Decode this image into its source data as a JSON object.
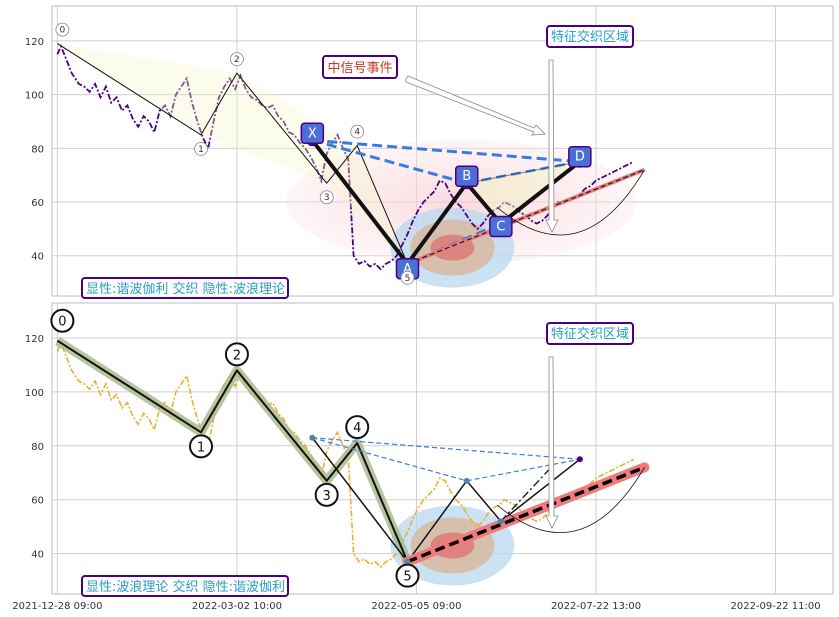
{
  "colors": {
    "grid": "#cfcfcf",
    "frame": "#bdbdbd",
    "purple_price": "#4b0082",
    "gold_price": "#e8b030",
    "pattern_blue": "#3a7be0",
    "node_blue": "#4a6fd6",
    "node_border": "#4b0082",
    "wave_line": "#111111",
    "wave_fill": "#f5f5c8",
    "wave_band": "#a7b786",
    "target_red": "#ee7c7c",
    "pink_zone": "#fbe3e6",
    "zone_blue": "#b8d8ef",
    "zone_tan": "#d8b79a",
    "zone_red": "#e07070",
    "box_border": "#4b0082",
    "box_text_blue": "#2a9cc6",
    "box_text_red": "#c0392b"
  },
  "annotations": {
    "top_feature_box": "特征交织区域",
    "top_signal_box": "中信号事件",
    "top_legend": "显性:谐波伽利 交织 隐性:波浪理论",
    "bottom_feature_box": "特征交织区域",
    "bottom_legend": "显性:波浪理论 交织 隐性:谐波伽利"
  },
  "chart_data": [
    {
      "type": "line",
      "panel": "top",
      "yticks": [
        40,
        60,
        80,
        100,
        120
      ],
      "ylim": [
        25,
        133
      ],
      "xlim": [
        -3,
        432
      ],
      "xtick_labels": [],
      "series": [
        {
          "role": "price",
          "x": [
            0,
            2,
            5,
            8,
            12,
            15,
            18,
            21,
            24,
            27,
            30,
            33,
            36,
            39,
            42,
            45,
            48,
            51,
            54,
            57,
            60,
            63,
            66,
            69,
            72,
            75,
            78,
            81,
            84,
            87,
            90,
            93,
            96,
            99,
            102,
            105,
            108,
            111,
            114,
            117,
            120,
            123,
            126,
            129,
            132,
            135,
            138,
            141,
            144,
            147,
            150,
            153,
            156,
            159,
            162,
            165,
            168,
            171,
            174,
            177,
            180,
            183,
            186,
            189,
            192,
            195,
            198,
            201,
            204,
            207,
            210,
            213,
            216,
            219,
            222,
            225,
            228,
            231,
            234,
            237,
            240,
            243,
            246,
            249,
            252,
            255,
            258,
            261,
            264,
            267,
            270,
            273,
            276,
            279,
            282,
            285,
            288,
            291,
            294,
            297,
            300,
            303,
            306,
            309,
            312,
            315,
            318,
            321
          ],
          "y": [
            115,
            118,
            113,
            108,
            104,
            103,
            101,
            104,
            99,
            103,
            97,
            99,
            94,
            96,
            91,
            88,
            92,
            90,
            86,
            94,
            96,
            92,
            100,
            103,
            106,
            97,
            90,
            84,
            80,
            90,
            99,
            103,
            106,
            102,
            107,
            102,
            99,
            98,
            96,
            95,
            96,
            92,
            90,
            86,
            85,
            82,
            80,
            77,
            73,
            68,
            78,
            82,
            85,
            80,
            76,
            40,
            37,
            38,
            36,
            37,
            35,
            37,
            38,
            40,
            44,
            48,
            53,
            57,
            60,
            62,
            64,
            68,
            67,
            63,
            60,
            58,
            55,
            52,
            50,
            52,
            55,
            57,
            58,
            60,
            59,
            58,
            56,
            55,
            53,
            52,
            53,
            55,
            58,
            60,
            60,
            61,
            62,
            63,
            65,
            66,
            68,
            69,
            70,
            71,
            72,
            73,
            74,
            75
          ]
        }
      ],
      "waves": [
        {
          "label": "0",
          "x": 0,
          "y": 119
        },
        {
          "label": "1",
          "x": 80,
          "y": 85
        },
        {
          "label": "2",
          "x": 100,
          "y": 108
        },
        {
          "label": "3",
          "x": 150,
          "y": 67
        },
        {
          "label": "4",
          "x": 167,
          "y": 81
        },
        {
          "label": "5",
          "x": 195,
          "y": 37
        }
      ],
      "harmonic": [
        {
          "label": "X",
          "x": 142,
          "y": 83
        },
        {
          "label": "A",
          "x": 195,
          "y": 37
        },
        {
          "label": "B",
          "x": 228,
          "y": 67
        },
        {
          "label": "C",
          "x": 247,
          "y": 52
        },
        {
          "label": "D",
          "x": 291,
          "y": 75
        }
      ],
      "target_line": {
        "x": [
          195,
          327
        ],
        "y": [
          37,
          72
        ]
      }
    },
    {
      "type": "line",
      "panel": "bottom",
      "yticks": [
        40,
        60,
        80,
        100,
        120
      ],
      "ylim": [
        25,
        133
      ],
      "xlim": [
        -3,
        432
      ],
      "xtick_labels": [
        "2021-12-28 09:00",
        "2022-03-02 10:00",
        "2022-05-05 09:00",
        "2022-07-22 13:00",
        "2022-09-22 11:00"
      ],
      "series": [
        {
          "role": "price",
          "x": [
            0,
            2,
            5,
            8,
            12,
            15,
            18,
            21,
            24,
            27,
            30,
            33,
            36,
            39,
            42,
            45,
            48,
            51,
            54,
            57,
            60,
            63,
            66,
            69,
            72,
            75,
            78,
            81,
            84,
            87,
            90,
            93,
            96,
            99,
            102,
            105,
            108,
            111,
            114,
            117,
            120,
            123,
            126,
            129,
            132,
            135,
            138,
            141,
            144,
            147,
            150,
            153,
            156,
            159,
            162,
            165,
            168,
            171,
            174,
            177,
            180,
            183,
            186,
            189,
            192,
            195,
            198,
            201,
            204,
            207,
            210,
            213,
            216,
            219,
            222,
            225,
            228,
            231,
            234,
            237,
            240,
            243,
            246,
            249,
            252,
            255,
            258,
            261,
            264,
            267,
            270,
            273,
            276,
            279,
            282,
            285,
            288,
            291,
            294,
            297,
            300,
            303,
            306,
            309,
            312,
            315,
            318,
            321
          ],
          "y": [
            115,
            118,
            113,
            108,
            104,
            103,
            101,
            104,
            99,
            103,
            97,
            99,
            94,
            96,
            91,
            88,
            92,
            90,
            86,
            94,
            96,
            92,
            100,
            103,
            106,
            97,
            90,
            84,
            80,
            90,
            99,
            103,
            106,
            102,
            107,
            102,
            99,
            98,
            96,
            95,
            96,
            92,
            90,
            86,
            85,
            82,
            80,
            77,
            73,
            68,
            78,
            82,
            85,
            80,
            76,
            40,
            37,
            38,
            36,
            37,
            35,
            37,
            38,
            40,
            44,
            48,
            53,
            57,
            60,
            62,
            64,
            68,
            67,
            63,
            60,
            58,
            55,
            52,
            50,
            52,
            55,
            57,
            58,
            60,
            59,
            58,
            56,
            55,
            53,
            52,
            53,
            55,
            58,
            60,
            60,
            61,
            62,
            63,
            65,
            66,
            68,
            69,
            70,
            71,
            72,
            73,
            74,
            75
          ]
        }
      ],
      "waves": [
        {
          "label": "0",
          "x": 0,
          "y": 119
        },
        {
          "label": "1",
          "x": 80,
          "y": 85
        },
        {
          "label": "2",
          "x": 100,
          "y": 108
        },
        {
          "label": "3",
          "x": 150,
          "y": 67
        },
        {
          "label": "4",
          "x": 167,
          "y": 81
        },
        {
          "label": "5",
          "x": 195,
          "y": 37
        }
      ],
      "harmonic": [
        {
          "label": "",
          "x": 142,
          "y": 83
        },
        {
          "label": "",
          "x": 195,
          "y": 37
        },
        {
          "label": "",
          "x": 228,
          "y": 67
        },
        {
          "label": "",
          "x": 247,
          "y": 52
        },
        {
          "label": "",
          "x": 291,
          "y": 75
        }
      ],
      "target_line": {
        "x": [
          195,
          327
        ],
        "y": [
          37,
          72
        ]
      }
    }
  ]
}
